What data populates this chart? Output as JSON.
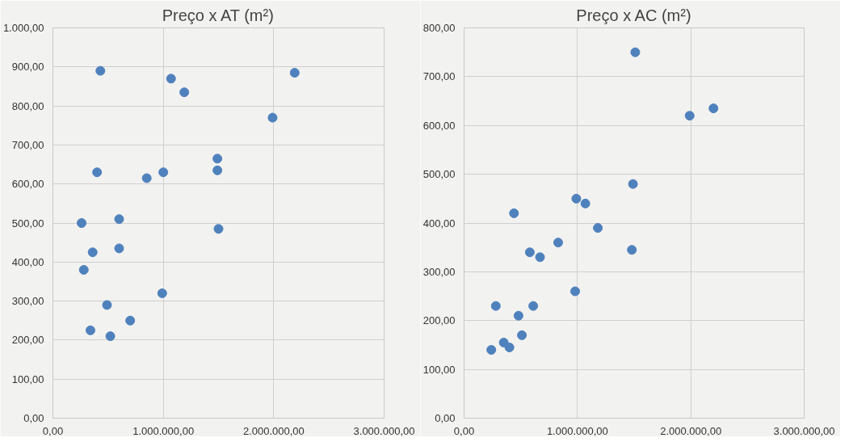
{
  "chart_data": [
    {
      "type": "scatter",
      "title": "Preço x AT (m²)",
      "color": "#4f81bd",
      "marker": "circle",
      "grid": true,
      "x": [
        430000,
        1070000,
        1190000,
        2190000,
        1990000,
        1490000,
        1490000,
        400000,
        850000,
        1000000,
        260000,
        600000,
        1500000,
        360000,
        600000,
        280000,
        990000,
        490000,
        700000,
        340000,
        520000
      ],
      "values": [
        890,
        870,
        835,
        885,
        770,
        665,
        635,
        630,
        615,
        630,
        500,
        510,
        485,
        425,
        435,
        380,
        320,
        290,
        250,
        225,
        210
      ],
      "xlim": [
        0,
        3000000
      ],
      "ylim": [
        0,
        1000
      ],
      "xticks": [
        {
          "value": 0,
          "label": "0,00"
        },
        {
          "value": 1000000,
          "label": "1.000.000,00"
        },
        {
          "value": 2000000,
          "label": "2.000.000,00"
        },
        {
          "value": 3000000,
          "label": "3.000.000,00"
        }
      ],
      "yticks": [
        {
          "value": 0,
          "label": "0,00"
        },
        {
          "value": 100,
          "label": "100,00"
        },
        {
          "value": 200,
          "label": "200,00"
        },
        {
          "value": 300,
          "label": "300,00"
        },
        {
          "value": 400,
          "label": "400,00"
        },
        {
          "value": 500,
          "label": "500,00"
        },
        {
          "value": 600,
          "label": "600,00"
        },
        {
          "value": 700,
          "label": "700,00"
        },
        {
          "value": 800,
          "label": "800,00"
        },
        {
          "value": 900,
          "label": "900,00"
        },
        {
          "value": 1000,
          "label": "1.000,00"
        }
      ]
    },
    {
      "type": "scatter",
      "title": "Preço x AC (m²)",
      "color": "#4f81bd",
      "marker": "circle",
      "grid": true,
      "x": [
        1510000,
        1990000,
        2200000,
        1490000,
        990000,
        1070000,
        440000,
        1180000,
        830000,
        1480000,
        580000,
        670000,
        980000,
        280000,
        610000,
        480000,
        510000,
        240000,
        350000,
        400000
      ],
      "values": [
        750,
        620,
        635,
        480,
        450,
        440,
        420,
        390,
        360,
        345,
        340,
        330,
        260,
        230,
        230,
        210,
        170,
        140,
        155,
        145
      ],
      "xlim": [
        0,
        3000000
      ],
      "ylim": [
        0,
        800
      ],
      "xticks": [
        {
          "value": 0,
          "label": "0,00"
        },
        {
          "value": 1000000,
          "label": "1.000.000,00"
        },
        {
          "value": 2000000,
          "label": "2.000.000,00"
        },
        {
          "value": 3000000,
          "label": "3.000.000,00"
        }
      ],
      "yticks": [
        {
          "value": 0,
          "label": "0,00"
        },
        {
          "value": 100,
          "label": "100,00"
        },
        {
          "value": 200,
          "label": "200,00"
        },
        {
          "value": 300,
          "label": "300,00"
        },
        {
          "value": 400,
          "label": "400,00"
        },
        {
          "value": 500,
          "label": "500,00"
        },
        {
          "value": 600,
          "label": "600,00"
        },
        {
          "value": 700,
          "label": "700,00"
        },
        {
          "value": 800,
          "label": "800,00"
        }
      ]
    }
  ]
}
